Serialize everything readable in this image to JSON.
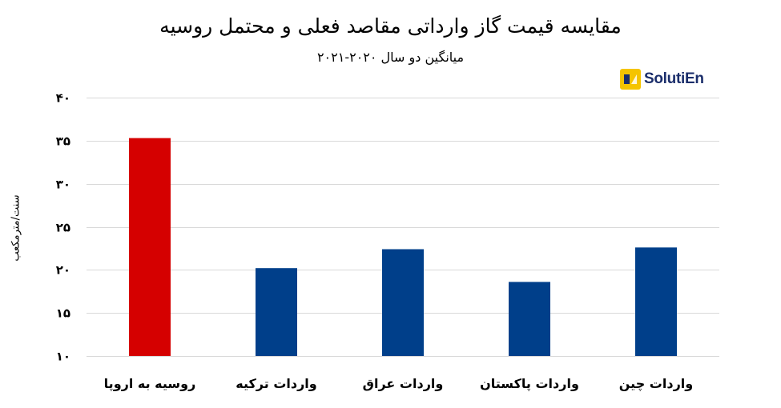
{
  "chart_data": {
    "type": "bar",
    "title": "مقایسه قیمت گاز وارداتی مقاصد فعلی و محتمل روسیه",
    "subtitle": "میانگین دو سال ۲۰۲۰-۲۰۲۱",
    "ylabel": "سنت/مترمکعب",
    "xlabel": "",
    "categories": [
      "روسیه به اروپا",
      "واردات ترکیه",
      "واردات عراق",
      "واردات پاکستان",
      "واردات چین"
    ],
    "values": [
      35.3,
      20.2,
      22.4,
      18.6,
      22.6
    ],
    "colors": [
      "#d50000",
      "#003f8a",
      "#003f8a",
      "#003f8a",
      "#003f8a"
    ],
    "ylim": [
      10,
      40
    ],
    "yticks": [
      10,
      15,
      20,
      25,
      30,
      35,
      40
    ],
    "ytick_labels": [
      "۱۰",
      "۱۵",
      "۲۰",
      "۲۵",
      "۳۰",
      "۳۵",
      "۴۰"
    ],
    "grid": true,
    "legend": "none"
  },
  "logo": {
    "text": "SolutiEn",
    "colors": {
      "mark": "#f5c400",
      "text": "#1b2e6b"
    }
  }
}
